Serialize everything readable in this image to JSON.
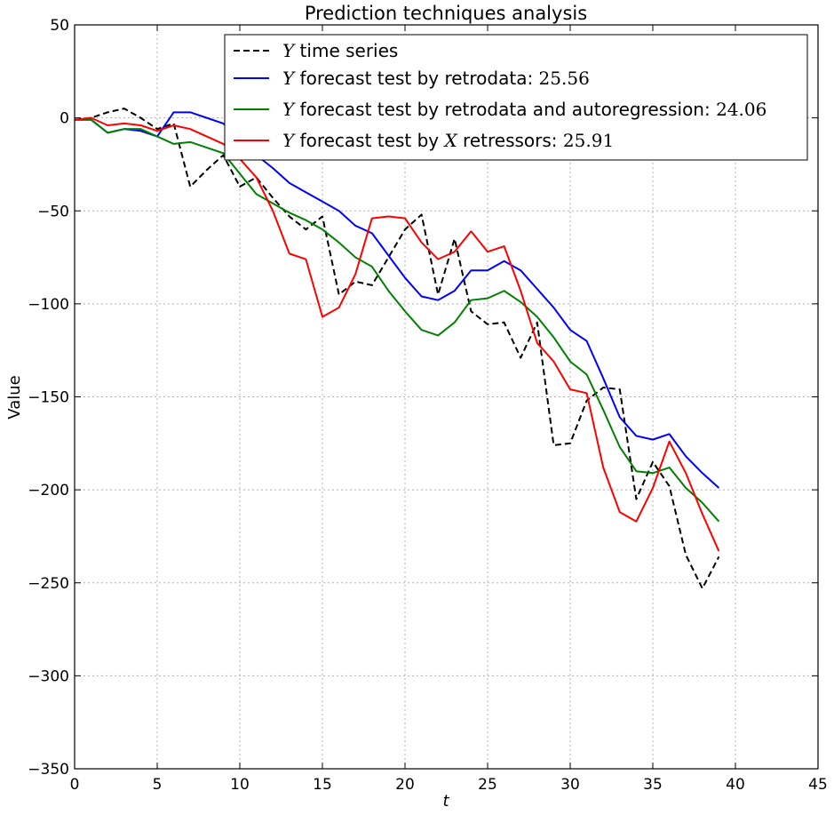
{
  "chart_data": {
    "type": "line",
    "title": "Prediction techniques analysis",
    "xlabel": "t",
    "ylabel": "Value",
    "xlim": [
      0,
      45
    ],
    "ylim": [
      -350,
      50
    ],
    "xticks": [
      0,
      5,
      10,
      15,
      20,
      25,
      30,
      35,
      40,
      45
    ],
    "yticks": [
      50,
      0,
      -50,
      -100,
      -150,
      -200,
      -250,
      -300,
      -350
    ],
    "grid": true,
    "legend_position": "top-right",
    "x": [
      0,
      1,
      2,
      3,
      4,
      5,
      6,
      7,
      8,
      9,
      10,
      11,
      12,
      13,
      14,
      15,
      16,
      17,
      18,
      19,
      20,
      21,
      22,
      23,
      24,
      25,
      26,
      27,
      28,
      29,
      30,
      31,
      32,
      33,
      34,
      35,
      36,
      37,
      38,
      39
    ],
    "series": [
      {
        "name": "Y time series",
        "color": "#000000",
        "dash": true,
        "values": [
          -1,
          0,
          3,
          5,
          0,
          -6,
          -3,
          -37,
          -28,
          -20,
          -37,
          -32,
          -43,
          -53,
          -60,
          -53,
          -95,
          -88,
          -90,
          -75,
          -60,
          -52,
          -95,
          -65,
          -104,
          -111,
          -110,
          -129,
          -110,
          -176,
          -175,
          -152,
          -145,
          -146,
          -205,
          -185,
          -198,
          -235,
          -253,
          -236
        ]
      },
      {
        "name": "Y forecast test by retrodata: 25.56",
        "color": "#0000ff",
        "dash": false,
        "values": [
          -1,
          -1,
          -8,
          -6,
          -7,
          -10,
          3,
          3,
          0,
          -3,
          -12,
          -20,
          -27,
          -35,
          -40,
          -45,
          -50,
          -58,
          -62,
          -74,
          -86,
          -96,
          -98,
          -93,
          -82,
          -82,
          -77,
          -82,
          -92,
          -102,
          -114,
          -120,
          -140,
          -161,
          -171,
          -173,
          -170,
          -182,
          -191,
          -199
        ]
      },
      {
        "name": "Y forecast test by retrodata and autoregression: 24.06",
        "color": "#008000",
        "dash": false,
        "values": [
          -1,
          -1,
          -8,
          -6,
          -6,
          -10,
          -14,
          -13,
          -16,
          -19,
          -30,
          -41,
          -46,
          -51,
          -55,
          -60,
          -67,
          -75,
          -80,
          -93,
          -104,
          -114,
          -117,
          -110,
          -98,
          -97,
          -93,
          -99,
          -107,
          -118,
          -131,
          -138,
          -157,
          -177,
          -190,
          -191,
          -188,
          -199,
          -207,
          -217
        ]
      },
      {
        "name": "Y forecast test by X retressors: 25.91",
        "color": "#ff0000",
        "dash": false,
        "values": [
          -1,
          0,
          -4,
          -3,
          -4,
          -7,
          -4,
          -6,
          -10,
          -14,
          -22,
          -32,
          -50,
          -73,
          -76,
          -107,
          -102,
          -84,
          -54,
          -53,
          -54,
          -67,
          -76,
          -72,
          -61,
          -72,
          -69,
          -93,
          -121,
          -131,
          -146,
          -148,
          -188,
          -212,
          -217,
          -199,
          -174,
          -191,
          -213,
          -233
        ]
      }
    ],
    "legend": [
      {
        "prefix": "Y",
        "text": " time series"
      },
      {
        "prefix": "Y",
        "text": " forecast test by retrodata: ",
        "score": "25.56"
      },
      {
        "prefix": "Y",
        "text": " forecast test by retrodata and autoregression: ",
        "score": "24.06"
      },
      {
        "prefix": "Y",
        "text": " forecast test by ",
        "mid": "X",
        "text2": " retressors: ",
        "score": "25.91"
      }
    ]
  }
}
